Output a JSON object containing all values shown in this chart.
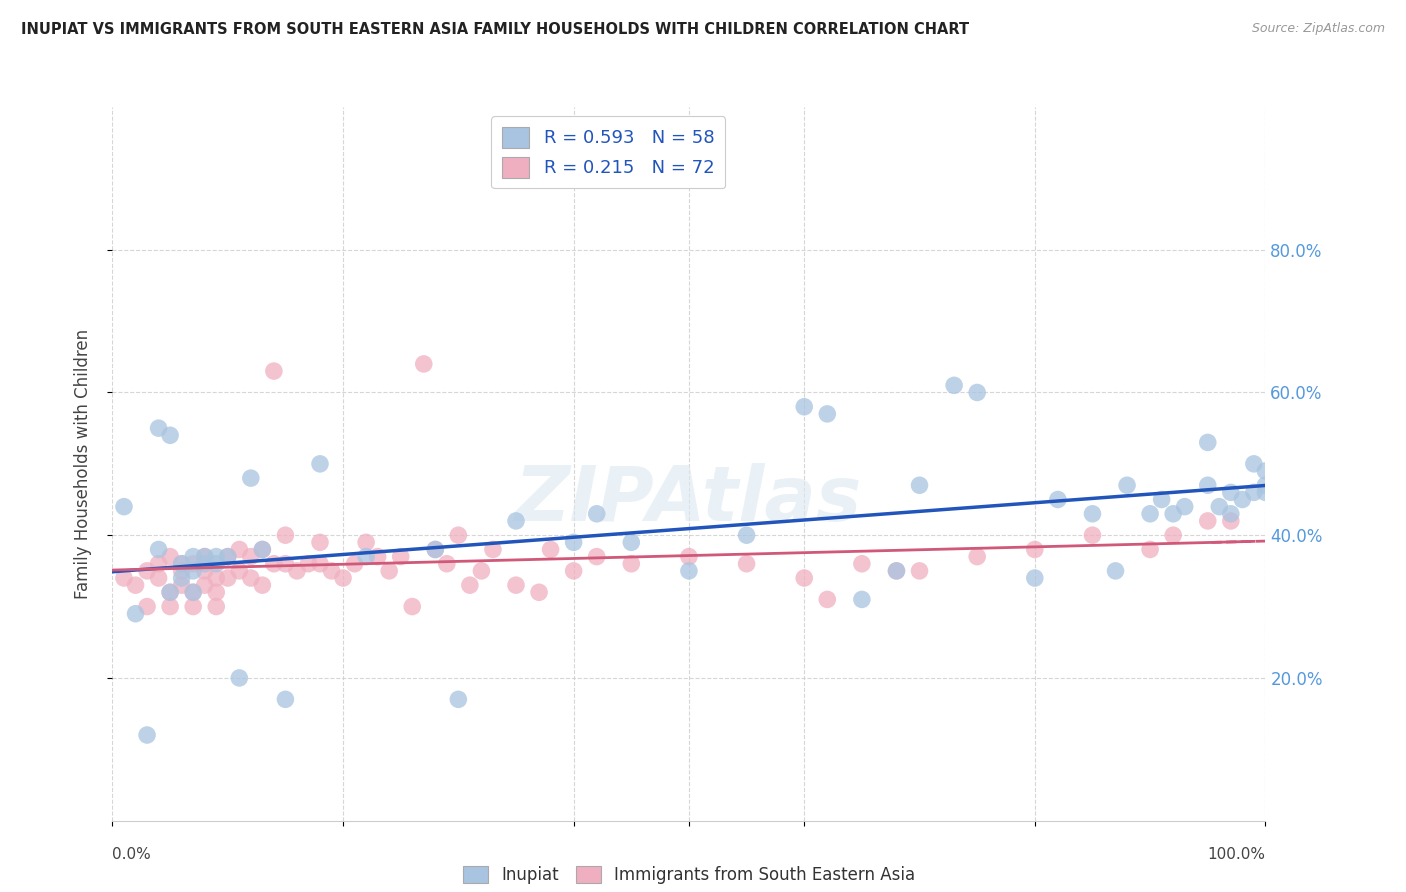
{
  "title": "INUPIAT VS IMMIGRANTS FROM SOUTH EASTERN ASIA FAMILY HOUSEHOLDS WITH CHILDREN CORRELATION CHART",
  "source": "Source: ZipAtlas.com",
  "ylabel": "Family Households with Children",
  "inupiat_color": "#a8c4e0",
  "sea_color": "#f0afc0",
  "inupiat_line_color": "#2255bb",
  "sea_line_color": "#d05878",
  "inupiat_label": "Inupiat",
  "sea_label": "Immigrants from South Eastern Asia",
  "legend_r_inupiat": "R = 0.593",
  "legend_n_inupiat": "N = 58",
  "legend_r_sea": "R = 0.215",
  "legend_n_sea": "N = 72",
  "xlim": [
    0.0,
    1.0
  ],
  "ylim": [
    0.0,
    1.0
  ],
  "xtick_positions": [
    0.0,
    0.2,
    0.4,
    0.5,
    0.6,
    0.8,
    1.0
  ],
  "ytick_positions": [
    0.2,
    0.4,
    0.6,
    0.8
  ],
  "inupiat_x": [
    0.01,
    0.02,
    0.03,
    0.04,
    0.04,
    0.05,
    0.05,
    0.06,
    0.06,
    0.07,
    0.07,
    0.07,
    0.08,
    0.08,
    0.09,
    0.09,
    0.1,
    0.11,
    0.12,
    0.13,
    0.15,
    0.18,
    0.22,
    0.28,
    0.3,
    0.35,
    0.4,
    0.42,
    0.45,
    0.5,
    0.55,
    0.6,
    0.62,
    0.65,
    0.68,
    0.7,
    0.73,
    0.75,
    0.8,
    0.82,
    0.85,
    0.87,
    0.88,
    0.9,
    0.91,
    0.92,
    0.93,
    0.95,
    0.95,
    0.96,
    0.97,
    0.97,
    0.98,
    0.99,
    0.99,
    1.0,
    1.0,
    1.0
  ],
  "inupiat_y": [
    0.44,
    0.29,
    0.12,
    0.38,
    0.55,
    0.54,
    0.32,
    0.36,
    0.34,
    0.35,
    0.37,
    0.32,
    0.36,
    0.37,
    0.37,
    0.36,
    0.37,
    0.2,
    0.48,
    0.38,
    0.17,
    0.5,
    0.37,
    0.38,
    0.17,
    0.42,
    0.39,
    0.43,
    0.39,
    0.35,
    0.4,
    0.58,
    0.57,
    0.31,
    0.35,
    0.47,
    0.61,
    0.6,
    0.34,
    0.45,
    0.43,
    0.35,
    0.47,
    0.43,
    0.45,
    0.43,
    0.44,
    0.53,
    0.47,
    0.44,
    0.46,
    0.43,
    0.45,
    0.46,
    0.5,
    0.46,
    0.49,
    0.47
  ],
  "sea_x": [
    0.01,
    0.02,
    0.03,
    0.03,
    0.04,
    0.04,
    0.05,
    0.05,
    0.05,
    0.06,
    0.06,
    0.06,
    0.07,
    0.07,
    0.07,
    0.08,
    0.08,
    0.08,
    0.09,
    0.09,
    0.09,
    0.1,
    0.1,
    0.11,
    0.11,
    0.12,
    0.12,
    0.13,
    0.13,
    0.14,
    0.14,
    0.15,
    0.15,
    0.16,
    0.17,
    0.18,
    0.18,
    0.19,
    0.2,
    0.21,
    0.22,
    0.23,
    0.24,
    0.25,
    0.26,
    0.27,
    0.28,
    0.29,
    0.3,
    0.31,
    0.32,
    0.33,
    0.35,
    0.37,
    0.38,
    0.4,
    0.42,
    0.45,
    0.5,
    0.55,
    0.6,
    0.62,
    0.65,
    0.68,
    0.7,
    0.75,
    0.8,
    0.85,
    0.9,
    0.92,
    0.95,
    0.97
  ],
  "sea_y": [
    0.34,
    0.33,
    0.3,
    0.35,
    0.34,
    0.36,
    0.3,
    0.32,
    0.37,
    0.33,
    0.35,
    0.36,
    0.3,
    0.32,
    0.36,
    0.33,
    0.35,
    0.37,
    0.3,
    0.32,
    0.34,
    0.34,
    0.37,
    0.35,
    0.38,
    0.34,
    0.37,
    0.33,
    0.38,
    0.36,
    0.63,
    0.36,
    0.4,
    0.35,
    0.36,
    0.36,
    0.39,
    0.35,
    0.34,
    0.36,
    0.39,
    0.37,
    0.35,
    0.37,
    0.3,
    0.64,
    0.38,
    0.36,
    0.4,
    0.33,
    0.35,
    0.38,
    0.33,
    0.32,
    0.38,
    0.35,
    0.37,
    0.36,
    0.37,
    0.36,
    0.34,
    0.31,
    0.36,
    0.35,
    0.35,
    0.37,
    0.38,
    0.4,
    0.38,
    0.4,
    0.42,
    0.42
  ]
}
